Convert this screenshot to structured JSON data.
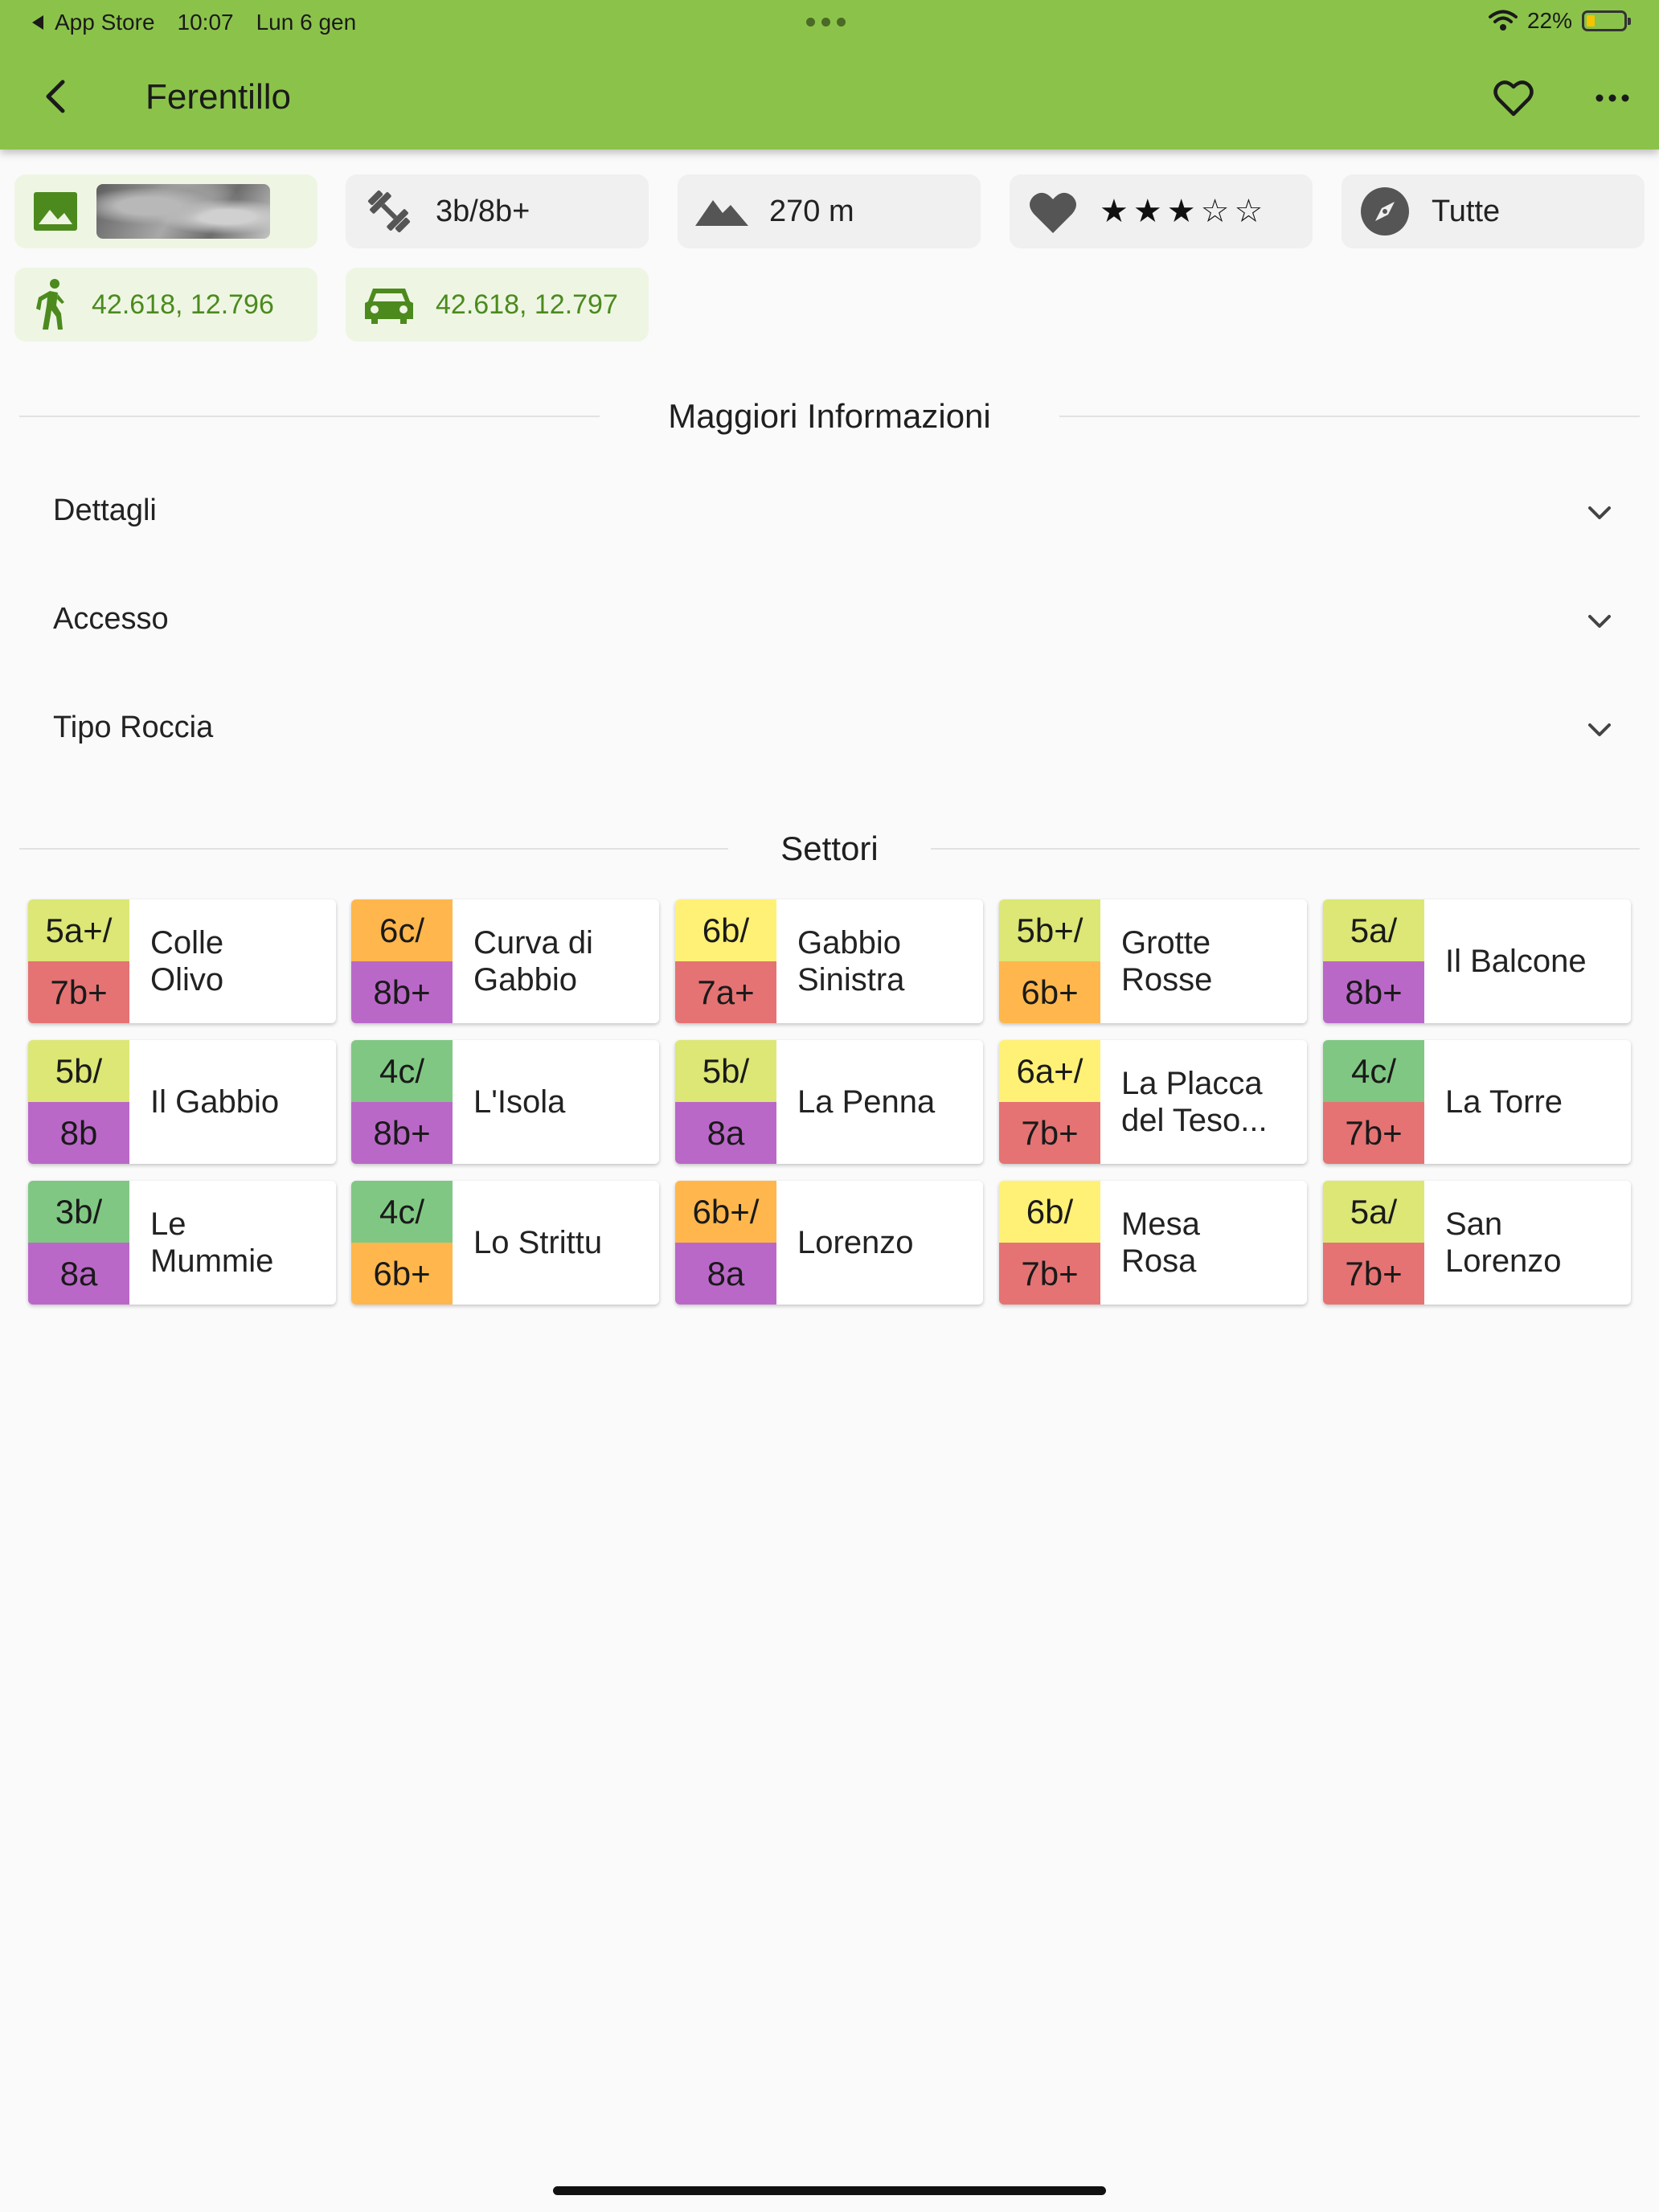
{
  "status_bar": {
    "back_app": "App Store",
    "time": "10:07",
    "date": "Lun 6 gen",
    "battery": "22%",
    "battery_level": 0.22
  },
  "toolbar": {
    "title": "Ferentillo"
  },
  "chips": {
    "grades": "3b/8b+",
    "height": "270 m",
    "rating_stars": 3,
    "rating_max": 5,
    "orientation": "Tutte",
    "walk_coords": "42.618, 12.796",
    "car_coords": "42.618, 12.797"
  },
  "info": {
    "title": "Maggiori Informazioni",
    "items": [
      {
        "label": "Dettagli"
      },
      {
        "label": "Accesso"
      },
      {
        "label": "Tipo Roccia"
      }
    ]
  },
  "sectors": {
    "title": "Settori",
    "items": [
      {
        "min": "5a+/",
        "max": "7b+",
        "name1": "Colle",
        "name2": "Olivo",
        "min_color": "#dce775",
        "max_color": "#e57373"
      },
      {
        "min": "6c/",
        "max": "8b+",
        "name1": "Curva di",
        "name2": "Gabbio",
        "min_color": "#ffb74d",
        "max_color": "#ba68c8"
      },
      {
        "min": "6b/",
        "max": "7a+",
        "name1": "Gabbio",
        "name2": "Sinistra",
        "min_color": "#fff176",
        "max_color": "#e57373"
      },
      {
        "min": "5b+/",
        "max": "6b+",
        "name1": "Grotte",
        "name2": "Rosse",
        "min_color": "#dce775",
        "max_color": "#ffb74d"
      },
      {
        "min": "5a/",
        "max": "8b+",
        "name1": "Il Balcone",
        "name2": "",
        "min_color": "#dce775",
        "max_color": "#ba68c8"
      },
      {
        "min": "5b/",
        "max": "8b",
        "name1": "Il Gabbio",
        "name2": "",
        "min_color": "#dce775",
        "max_color": "#ba68c8"
      },
      {
        "min": "4c/",
        "max": "8b+",
        "name1": "L'Isola",
        "name2": "",
        "min_color": "#81c784",
        "max_color": "#ba68c8"
      },
      {
        "min": "5b/",
        "max": "8a",
        "name1": "La Penna",
        "name2": "",
        "min_color": "#dce775",
        "max_color": "#ba68c8"
      },
      {
        "min": "6a+/",
        "max": "7b+",
        "name1": "La Placca",
        "name2": "del Teso...",
        "min_color": "#fff176",
        "max_color": "#e57373"
      },
      {
        "min": "4c/",
        "max": "7b+",
        "name1": "La Torre",
        "name2": "",
        "min_color": "#81c784",
        "max_color": "#e57373"
      },
      {
        "min": "3b/",
        "max": "8a",
        "name1": "Le",
        "name2": "Mummie",
        "min_color": "#81c784",
        "max_color": "#ba68c8"
      },
      {
        "min": "4c/",
        "max": "6b+",
        "name1": "Lo Strittu",
        "name2": "",
        "min_color": "#81c784",
        "max_color": "#ffb74d"
      },
      {
        "min": "6b+/",
        "max": "8a",
        "name1": "Lorenzo",
        "name2": "",
        "min_color": "#ffb74d",
        "max_color": "#ba68c8"
      },
      {
        "min": "6b/",
        "max": "7b+",
        "name1": "Mesa",
        "name2": "Rosa",
        "min_color": "#fff176",
        "max_color": "#e57373"
      },
      {
        "min": "5a/",
        "max": "7b+",
        "name1": "San",
        "name2": "Lorenzo",
        "min_color": "#dce775",
        "max_color": "#e57373"
      }
    ]
  },
  "icons": {
    "image": "image-icon",
    "grades": "dumbbell-icon",
    "height": "mountain-icon",
    "rating": "heart-icon",
    "orientation": "compass-icon",
    "walk": "walking-icon",
    "car": "car-icon"
  },
  "colors": {
    "appbar": "#8bc34a",
    "chip_green_text": "#4c8a1e"
  }
}
